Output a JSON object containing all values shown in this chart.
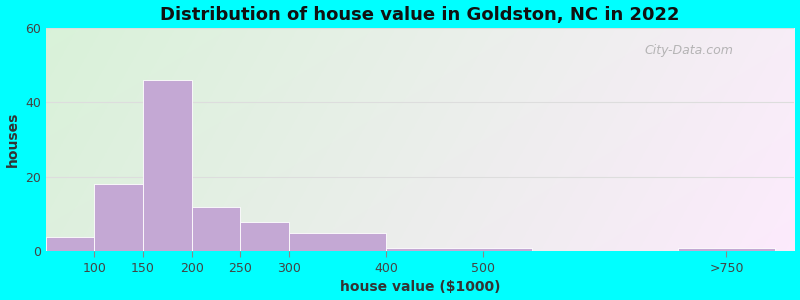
{
  "title": "Distribution of house value in Goldston, NC in 2022",
  "xlabel": "house value ($1000)",
  "ylabel": "houses",
  "bar_lefts": [
    50,
    100,
    150,
    200,
    250,
    300,
    400,
    550,
    700
  ],
  "bar_heights": [
    4,
    18,
    46,
    12,
    8,
    5,
    1,
    0,
    1
  ],
  "bar_widths": [
    50,
    50,
    50,
    50,
    50,
    100,
    150,
    150,
    100
  ],
  "bar_color": "#C4A8D4",
  "bar_edgecolor": "#ffffff",
  "xlim": [
    50,
    820
  ],
  "ylim": [
    0,
    60
  ],
  "yticks": [
    0,
    20,
    40,
    60
  ],
  "xtick_positions": [
    100,
    150,
    200,
    250,
    300,
    400,
    500,
    750
  ],
  "xtick_labels": [
    "100",
    "150",
    "200",
    "250",
    "300",
    "400",
    "500",
    ">750"
  ],
  "title_fontsize": 13,
  "axis_label_fontsize": 10,
  "tick_fontsize": 9,
  "background_outer": "#00FFFF",
  "watermark_text": "City-Data.com",
  "grid_color": "#dddddd",
  "bg_green": "#d4ecd4",
  "bg_white": "#f5f5ff"
}
